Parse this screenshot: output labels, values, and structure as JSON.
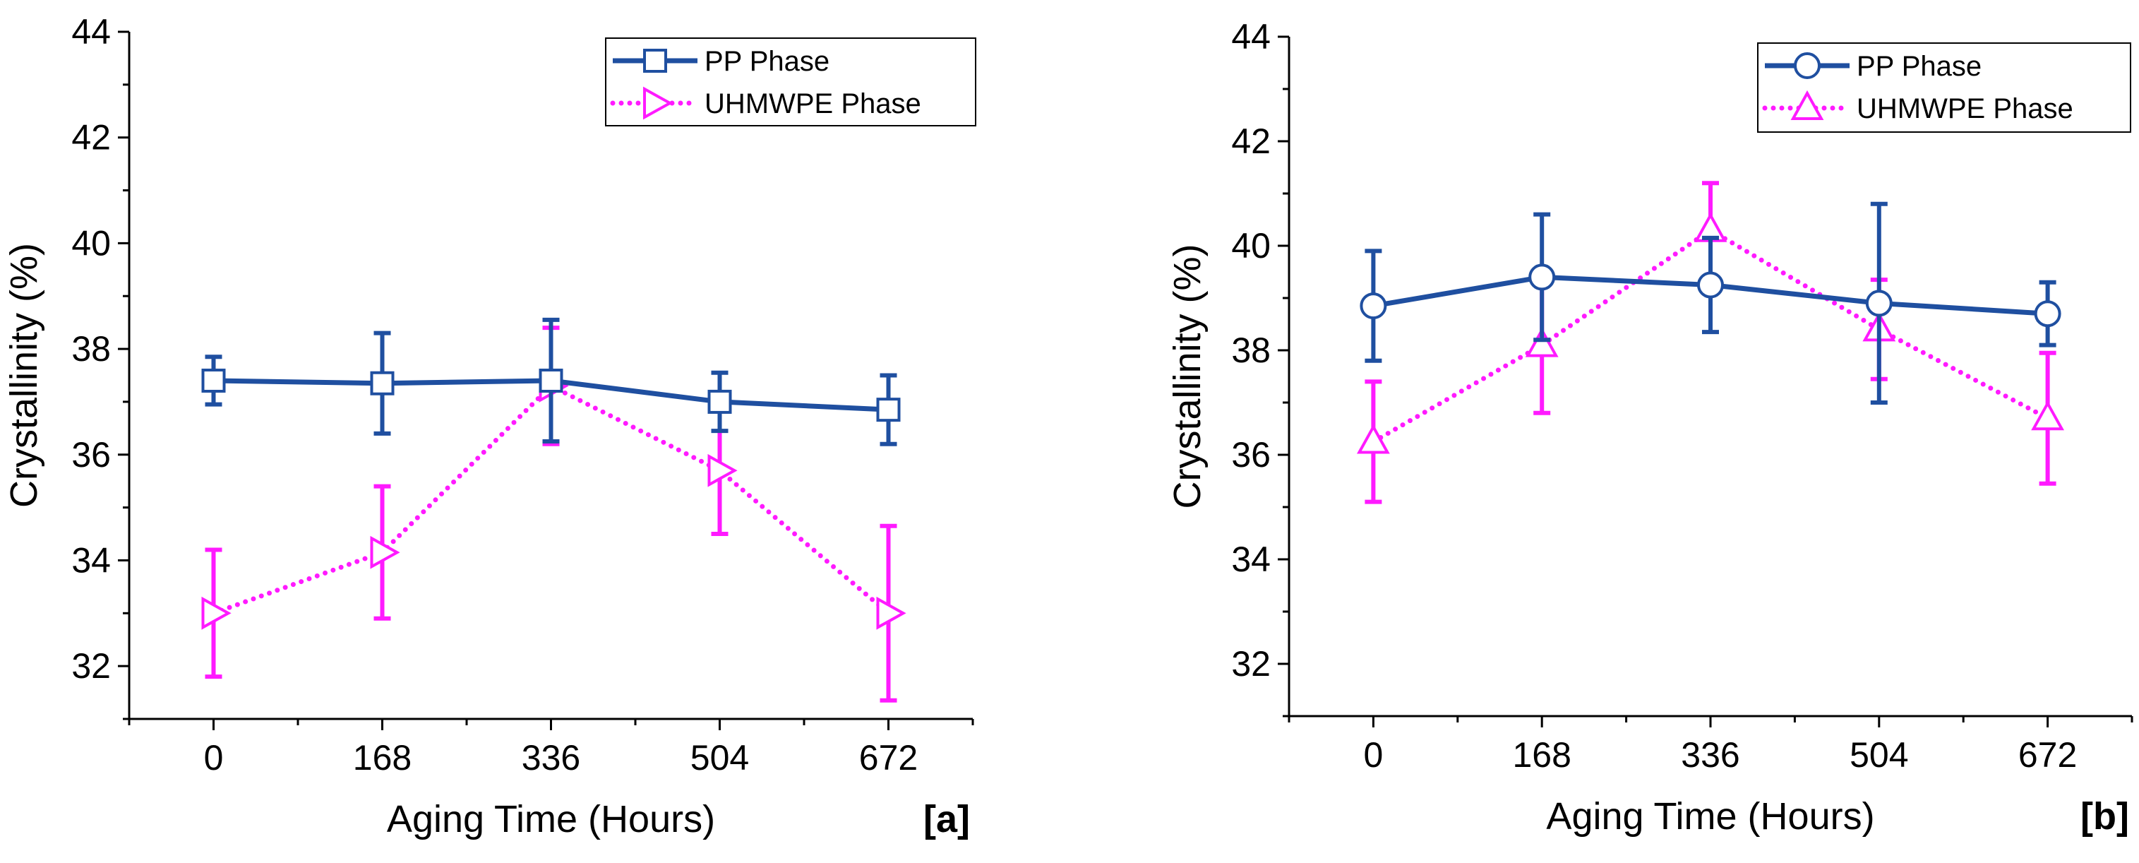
{
  "chart_data": [
    {
      "type": "line",
      "panel_label": "[a]",
      "xlabel": "Aging Time (Hours)",
      "ylabel": "Crystallinity (%)",
      "x": [
        0,
        168,
        336,
        504,
        672
      ],
      "x_tick_labels": [
        "0",
        "168",
        "336",
        "504",
        "672"
      ],
      "xlim": [
        -84,
        756
      ],
      "ylim": [
        31,
        44
      ],
      "y_ticks": [
        32,
        34,
        36,
        38,
        40,
        42,
        44
      ],
      "grid": false,
      "legend_position": "top-right",
      "series": [
        {
          "name": "PP Phase",
          "values": [
            37.4,
            37.35,
            37.4,
            37.0,
            36.85
          ],
          "errors": [
            0.45,
            0.95,
            1.15,
            0.55,
            0.65
          ],
          "color": "#1f4fa0",
          "line_style": "solid",
          "marker": "square"
        },
        {
          "name": "UHMWPE Phase",
          "values": [
            33.0,
            34.15,
            37.3,
            35.7,
            33.0
          ],
          "errors": [
            1.2,
            1.25,
            1.1,
            1.2,
            1.65
          ],
          "color": "#ff1aff",
          "line_style": "dotted",
          "marker": "triangle-right"
        }
      ]
    },
    {
      "type": "line",
      "panel_label": "[b]",
      "xlabel": "Aging Time (Hours)",
      "ylabel": "Crystallinity (%)",
      "x": [
        0,
        168,
        336,
        504,
        672
      ],
      "x_tick_labels": [
        "0",
        "168",
        "336",
        "504",
        "672"
      ],
      "xlim": [
        -84,
        756
      ],
      "ylim": [
        31,
        44
      ],
      "y_ticks": [
        32,
        34,
        36,
        38,
        40,
        42,
        44
      ],
      "grid": false,
      "legend_position": "top-right",
      "series": [
        {
          "name": "PP Phase",
          "values": [
            38.85,
            39.4,
            39.25,
            38.9,
            38.7
          ],
          "errors": [
            1.05,
            1.2,
            0.9,
            1.9,
            0.6
          ],
          "color": "#1f4fa0",
          "line_style": "solid",
          "marker": "circle"
        },
        {
          "name": "UHMWPE Phase",
          "values": [
            36.25,
            38.1,
            40.3,
            38.4,
            36.7
          ],
          "errors": [
            1.15,
            1.3,
            0.9,
            0.95,
            1.25
          ],
          "color": "#ff1aff",
          "line_style": "dotted",
          "marker": "triangle-up"
        }
      ]
    }
  ]
}
